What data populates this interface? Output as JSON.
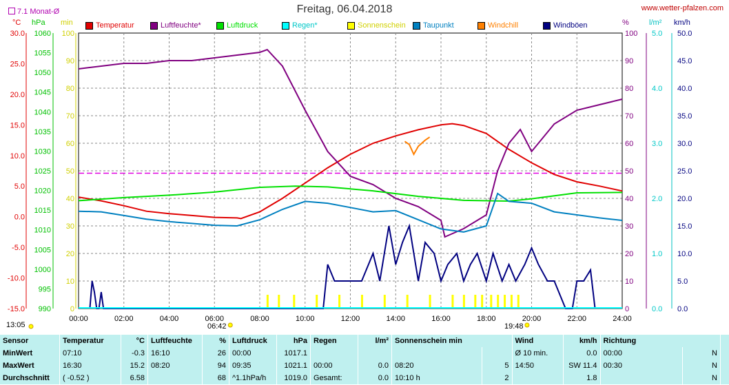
{
  "page": {
    "title": "Freitag, 06.04.2018",
    "url": "www.wetter-pfalzen.com",
    "monat_label": "7.1 Monat-Ø",
    "sunrise": "06:42",
    "sunset": "19:48",
    "chart_start": "13:05"
  },
  "units": {
    "temp": "°C",
    "press": "hPa",
    "min": "min",
    "humidity": "%",
    "rain": "l/m²",
    "wind": "km/h"
  },
  "legend": [
    {
      "label": "Temperatur",
      "color": "#e00000"
    },
    {
      "label": "Luftfeuchte*",
      "color": "#800080"
    },
    {
      "label": "Luftdruck",
      "color": "#00e000"
    },
    {
      "label": "Regen*",
      "color": "#00ffff"
    },
    {
      "label": "Sonnenschein",
      "color": "#ffff00"
    },
    {
      "label": "Taupunkt",
      "color": "#0080c0"
    },
    {
      "label": "Windchill",
      "color": "#ff8000"
    },
    {
      "label": "Windböen",
      "color": "#000080"
    }
  ],
  "chart_data": {
    "type": "line",
    "title": "Freitag, 06.04.2018",
    "x_ticks": [
      "00:00",
      "02:00",
      "04:00",
      "06:00",
      "08:00",
      "10:00",
      "12:00",
      "14:00",
      "16:00",
      "18:00",
      "20:00",
      "22:00",
      "24:00"
    ],
    "axes": {
      "temp": {
        "label": "°C",
        "range": [
          -15,
          30
        ],
        "ticks": [
          "30.0",
          "25.0",
          "20.0",
          "15.0",
          "10.0",
          "5.0",
          "0.0",
          "-5.0",
          "-10.0",
          "-15.0"
        ]
      },
      "pressure": {
        "label": "hPa",
        "range": [
          990,
          1060
        ],
        "ticks": [
          "1060",
          "1055",
          "1050",
          "1045",
          "1040",
          "1035",
          "1030",
          "1025",
          "1020",
          "1015",
          "1010",
          "1005",
          "1000",
          "995",
          "990"
        ]
      },
      "minutes": {
        "label": "min",
        "range": [
          0,
          100
        ],
        "ticks": [
          "100",
          "90",
          "80",
          "70",
          "60",
          "50",
          "40",
          "30",
          "20",
          "10",
          "0"
        ]
      },
      "humidity": {
        "label": "%",
        "range": [
          0,
          100
        ],
        "ticks": [
          "100",
          "90",
          "80",
          "70",
          "60",
          "50",
          "40",
          "30",
          "20",
          "10",
          "0"
        ]
      },
      "rain": {
        "label": "l/m²",
        "range": [
          0,
          5
        ],
        "ticks": [
          "5.0",
          "4.0",
          "3.0",
          "2.0",
          "1.0",
          "0.0"
        ]
      },
      "wind": {
        "label": "km/h",
        "range": [
          0,
          50
        ],
        "ticks": [
          "50.0",
          "45.0",
          "40.0",
          "35.0",
          "30.0",
          "25.0",
          "20.0",
          "15.0",
          "10.0",
          "5.0",
          "0.0"
        ]
      }
    },
    "reference_line": {
      "name": "7.1 Monat-Ø",
      "value": 7.1,
      "unit": "°C"
    },
    "series": [
      {
        "name": "Temperatur",
        "axis": "temp",
        "color": "#e00000",
        "x": [
          0,
          1,
          2,
          3,
          4,
          5,
          6,
          7,
          7.17,
          8,
          9,
          10,
          11,
          12,
          13,
          14,
          15,
          16,
          16.5,
          17,
          18,
          19,
          20,
          21,
          22,
          23,
          24
        ],
        "y": [
          3.2,
          2.6,
          1.8,
          0.9,
          0.5,
          0.2,
          -0.1,
          -0.2,
          -0.3,
          0.8,
          3.0,
          5.5,
          8.0,
          10.2,
          12.0,
          13.2,
          14.2,
          15.0,
          15.2,
          14.9,
          13.6,
          11.0,
          8.8,
          6.9,
          5.7,
          5.0,
          4.2
        ]
      },
      {
        "name": "Luftfeuchte*",
        "axis": "humidity",
        "color": "#800080",
        "x": [
          0,
          1,
          2,
          3,
          4,
          5,
          6,
          7,
          8,
          8.33,
          9,
          10,
          11,
          12,
          13,
          14,
          15,
          16,
          16.17,
          17,
          18,
          18.5,
          19,
          19.5,
          20,
          21,
          22,
          23,
          24
        ],
        "y": [
          87,
          88,
          89,
          89,
          90,
          90,
          91,
          92,
          93,
          94,
          88,
          72,
          57,
          48,
          45,
          40,
          37,
          32,
          26,
          29,
          34,
          50,
          60,
          65,
          57,
          67,
          72,
          74,
          76
        ]
      },
      {
        "name": "Luftdruck",
        "axis": "pressure",
        "color": "#00e000",
        "x": [
          0,
          2,
          4,
          6,
          8,
          9.58,
          11,
          13,
          15,
          17,
          19,
          20,
          22,
          24
        ],
        "y": [
          1017.4,
          1018.2,
          1018.8,
          1019.6,
          1020.8,
          1021.1,
          1020.9,
          1019.9,
          1018.5,
          1017.5,
          1017.3,
          1017.9,
          1019.4,
          1019.5
        ]
      },
      {
        "name": "Taupunkt",
        "axis": "temp",
        "color": "#0080c0",
        "x": [
          0,
          1,
          2,
          3,
          4,
          5,
          6,
          7,
          8,
          9,
          10,
          11,
          12,
          13,
          14,
          15,
          16,
          17,
          18,
          18.5,
          19,
          20,
          21,
          22,
          23,
          24
        ],
        "y": [
          0.9,
          0.8,
          0.2,
          -0.4,
          -0.8,
          -1.1,
          -1.4,
          -1.5,
          -0.5,
          1.2,
          2.5,
          2.2,
          1.5,
          0.8,
          1.0,
          -0.5,
          -2.0,
          -2.5,
          -1.5,
          3.8,
          2.5,
          2.2,
          0.8,
          0.3,
          -0.2,
          -0.6
        ]
      },
      {
        "name": "Windchill",
        "axis": "temp",
        "color": "#ff8000",
        "x": [
          14.4,
          14.6,
          14.8,
          15.0,
          15.3,
          15.5
        ],
        "y": [
          12.3,
          11.8,
          10.2,
          11.5,
          12.5,
          13.0
        ]
      },
      {
        "name": "Windböen",
        "axis": "wind",
        "color": "#000080",
        "x": [
          0.5,
          0.6,
          0.7,
          0.8,
          0.9,
          1.0,
          1.1,
          10.8,
          11.0,
          11.3,
          12.0,
          12.5,
          13.0,
          13.3,
          13.5,
          13.7,
          14.0,
          14.3,
          14.6,
          15.0,
          15.3,
          15.7,
          16.0,
          16.3,
          16.7,
          17.0,
          17.3,
          17.6,
          18.0,
          18.3,
          18.7,
          19.0,
          19.3,
          19.7,
          20.0,
          20.3,
          20.7,
          21.0,
          21.5,
          21.8,
          22.0,
          22.3,
          22.6,
          22.8
        ],
        "y": [
          0,
          5,
          3,
          0,
          0,
          3,
          0,
          0,
          8,
          5,
          5,
          5,
          10,
          5,
          10,
          15,
          8,
          12,
          15,
          5,
          12,
          10,
          5,
          8,
          10,
          5,
          8,
          10,
          5,
          10,
          5,
          8,
          5,
          8,
          11,
          8,
          5,
          5,
          0,
          0,
          5,
          5,
          7,
          0
        ]
      },
      {
        "name": "Sonnenschein",
        "axis": "minutes",
        "color": "#ffff00",
        "type": "bar",
        "x": [
          8.33,
          8.83,
          9.5,
          10.5,
          11.5,
          12.5,
          13.5,
          14.5,
          15.5,
          16.5,
          17.0,
          17.5,
          17.8,
          18.2,
          18.5,
          18.8,
          19.1,
          19.4
        ],
        "y": [
          5,
          5,
          5,
          5,
          5,
          5,
          5,
          5,
          5,
          5,
          5,
          5,
          5,
          5,
          5,
          5,
          5,
          5
        ]
      }
    ]
  },
  "stats": {
    "headers": {
      "sensor": "Sensor",
      "temp": "Temperatur",
      "temp_u": "°C",
      "hum": "Luftfeuchte",
      "hum_u": "%",
      "press": "Luftdruck",
      "press_u": "hPa",
      "rain": "Regen",
      "rain_u": "l/m²",
      "sun": "Sonnenschein min",
      "wind": "Wind",
      "wind_u": "km/h",
      "dir": "Richtung"
    },
    "rows": [
      {
        "label": "MinWert",
        "t_time": "07:10",
        "t_val": "-0.3",
        "h_time": "16:10",
        "h_val": "26",
        "p_time": "00:00",
        "p_val": "1017.1",
        "r_time": "",
        "r_val": "",
        "s_time": "",
        "s_val": "",
        "w_time": "Ø 10 min.",
        "w_val": "0.0",
        "d_time": "00:00",
        "d_val": "N"
      },
      {
        "label": "MaxWert",
        "t_time": "16:30",
        "t_val": "15.2",
        "h_time": "08:20",
        "h_val": "94",
        "p_time": "09:35",
        "p_val": "1021.1",
        "r_time": "00:00",
        "r_val": "0.0",
        "s_time": "08:20",
        "s_val": "5",
        "w_time": "14:50",
        "w_val": "SW 11.4",
        "d_time": "00:30",
        "d_val": "N"
      },
      {
        "label": "Durchschnitt",
        "t_time": "( -0.52 )",
        "t_val": "6.58",
        "h_time": "",
        "h_val": "68",
        "p_time": "^1.1hPa/h",
        "p_val": "1019.0",
        "r_time": "Gesamt:",
        "r_val": "0.0",
        "s_time": "10:10 h",
        "s_val": "2",
        "w_time": "",
        "w_val": "1.8",
        "d_time": "",
        "d_val": "N"
      }
    ]
  }
}
